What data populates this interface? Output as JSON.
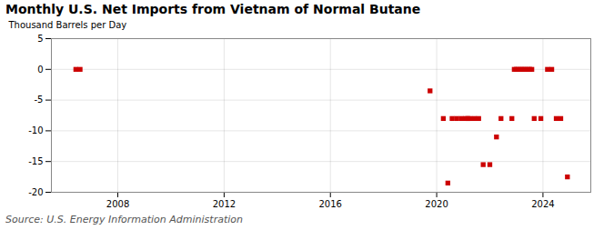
{
  "chart_data": {
    "type": "scatter",
    "title": "Monthly U.S. Net Imports from Vietnam of Normal Butane",
    "ylabel": "Thousand Barrels per Day",
    "source": "Source: U.S. Energy Information Administration",
    "x": [
      2006.42,
      2006.58,
      2019.75,
      2020.25,
      2020.42,
      2020.58,
      2020.75,
      2020.92,
      2021.08,
      2021.17,
      2021.25,
      2021.42,
      2021.58,
      2021.75,
      2022.0,
      2022.25,
      2022.42,
      2022.83,
      2022.92,
      2023.0,
      2023.08,
      2023.17,
      2023.25,
      2023.33,
      2023.42,
      2023.5,
      2023.58,
      2023.67,
      2023.92,
      2024.17,
      2024.33,
      2024.5,
      2024.67,
      2024.92
    ],
    "values": [
      0.0,
      0.0,
      -3.5,
      -8.0,
      -18.5,
      -8.0,
      -8.0,
      -8.0,
      -8.0,
      -8.0,
      -8.0,
      -8.0,
      -8.0,
      -15.5,
      -15.5,
      -11.0,
      -8.0,
      -8.0,
      0.0,
      0.0,
      0.0,
      0.0,
      0.0,
      0.0,
      0.0,
      0.0,
      0.0,
      -8.0,
      -8.0,
      0.0,
      0.0,
      -8.0,
      -8.0,
      -17.5
    ],
    "color": "#cc0000",
    "marker": "square",
    "xlim": [
      2005.5,
      2025.8
    ],
    "xticks": [
      2008,
      2012,
      2016,
      2020,
      2024
    ],
    "ylim": [
      -20,
      5
    ],
    "yticks": [
      -20,
      -15,
      -10,
      -5,
      0,
      5
    ],
    "grid": true
  }
}
